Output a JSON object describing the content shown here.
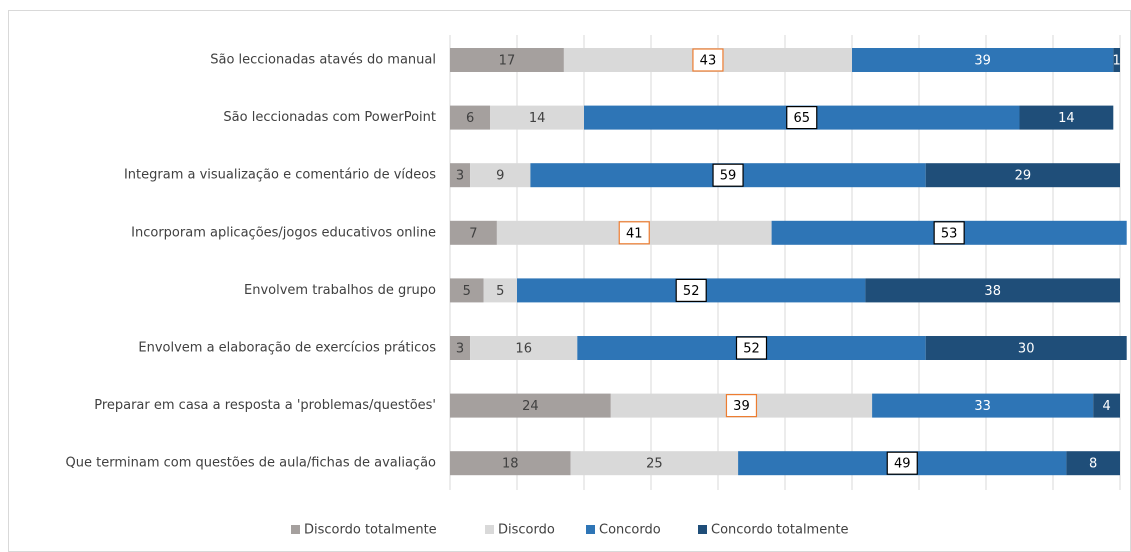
{
  "chart_data": {
    "type": "stacked_bar_horizontal",
    "categories": [
      "São leccionadas atavés do manual",
      "São leccionadas com PowerPoint",
      "Integram a visualização e comentário de vídeos",
      "Incorporam aplicações/jogos educativos online",
      "Envolvem trabalhos de grupo",
      "Envolvem a elaboração de exercícios práticos",
      "Preparar em casa a resposta a 'problemas/questões'",
      "Que terminam com questões de aula/fichas de avaliação"
    ],
    "series": [
      {
        "name": "Discordo totalmente",
        "color": "#a5a09e",
        "label_color": "#404040",
        "label_box": [
          null,
          null,
          null,
          null,
          null,
          null,
          null,
          null
        ],
        "values": [
          17,
          6,
          3,
          7,
          5,
          3,
          24,
          18
        ]
      },
      {
        "name": "Discordo",
        "color": "#d9d9d9",
        "label_color": "#404040",
        "label_box": [
          "#ed7d31",
          null,
          null,
          "#ed7d31",
          null,
          null,
          "#ed7d31",
          null
        ],
        "values": [
          43,
          14,
          9,
          41,
          5,
          16,
          39,
          25
        ]
      },
      {
        "name": "Concordo",
        "color": "#2e75b6",
        "label_color": "#ffffff",
        "label_box": [
          null,
          "#000000",
          "#000000",
          "#000000",
          "#000000",
          "#000000",
          null,
          "#000000"
        ],
        "values": [
          39,
          65,
          59,
          53,
          52,
          52,
          33,
          49
        ]
      },
      {
        "name": "Concordo totalmente",
        "color": "#1f4e79",
        "label_color": "#ffffff",
        "label_box": [
          null,
          null,
          null,
          null,
          null,
          null,
          null,
          null
        ],
        "values": [
          1,
          14,
          29,
          null,
          38,
          30,
          4,
          8
        ]
      }
    ],
    "xlim": [
      0,
      100
    ],
    "xticks": [
      0,
      10,
      20,
      30,
      40,
      50,
      60,
      70,
      80,
      90,
      100
    ],
    "grid": true,
    "legend": "bottom"
  }
}
